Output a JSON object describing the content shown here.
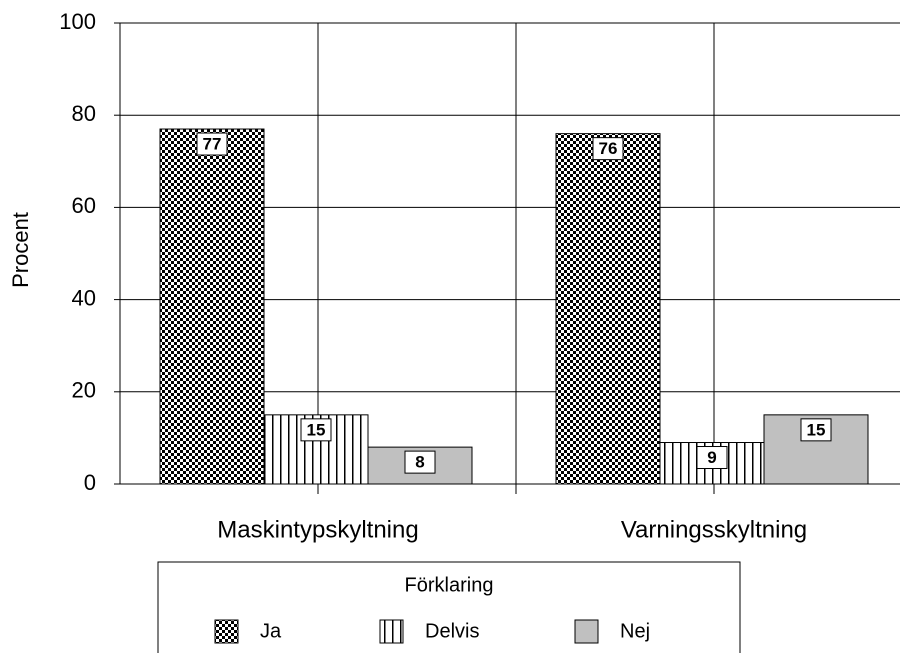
{
  "chart_data": {
    "type": "bar",
    "y_label": "Procent",
    "categories": [
      "Maskintypskyltning",
      "Varningsskyltning"
    ],
    "series": [
      {
        "name": "Ja",
        "color": "#000000",
        "pattern": "checker",
        "values": [
          77,
          76
        ]
      },
      {
        "name": "Delvis",
        "color": "#000000",
        "pattern": "vertical",
        "values": [
          15,
          9
        ]
      },
      {
        "name": "Nej",
        "color": "#c0c0c0",
        "pattern": "solid",
        "values": [
          8,
          15
        ]
      }
    ],
    "ylim": [
      0,
      100
    ],
    "yticks": [
      0,
      20,
      40,
      60,
      80,
      100
    ],
    "grid": true,
    "legend_title": "Förklaring",
    "legend": "bottom"
  }
}
